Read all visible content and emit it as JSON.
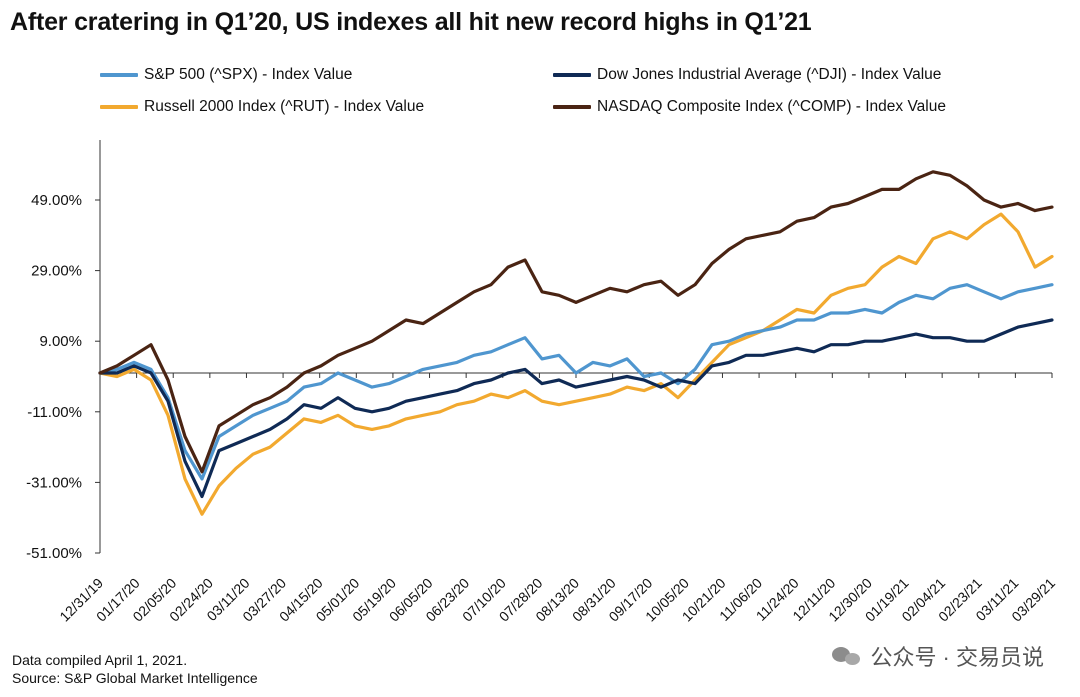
{
  "title": "After cratering in Q1’20, US indexes all hit new record highs in Q1’21",
  "legend": [
    {
      "label": "S&P 500 (^SPX) - Index Value",
      "color": "#4f96cf"
    },
    {
      "label": "Dow Jones Industrial Average (^DJI) - Index Value",
      "color": "#0f2a55"
    },
    {
      "label": "Russell 2000 Index (^RUT) - Index Value",
      "color": "#f2a92f"
    },
    {
      "label": "NASDAQ Composite Index (^COMP) - Index Value",
      "color": "#4a2413"
    }
  ],
  "footnotes": {
    "compiled": "Data compiled April 1, 2021.",
    "source": "Source: S&P Global Market Intelligence"
  },
  "watermark": {
    "text": "公众号 · 交易员说",
    "icon": "wechat-icon"
  },
  "chart_data": {
    "type": "line",
    "ylim": [
      -51,
      60
    ],
    "yticks": [
      49,
      29,
      9,
      -11,
      -31,
      -51
    ],
    "ytick_labels": [
      "49.00%",
      "29.00%",
      "9.00%",
      "-11.00%",
      "-31.00%",
      "-51.00%"
    ],
    "grid": false,
    "legend_position": "top",
    "x_tick_labels": [
      "12/31/19",
      "01/17/20",
      "02/05/20",
      "02/24/20",
      "03/11/20",
      "03/27/20",
      "04/15/20",
      "05/01/20",
      "05/19/20",
      "06/05/20",
      "06/23/20",
      "07/10/20",
      "07/28/20",
      "08/13/20",
      "08/31/20",
      "09/17/20",
      "10/05/20",
      "10/21/20",
      "11/06/20",
      "11/24/20",
      "12/11/20",
      "12/30/20",
      "01/19/21",
      "02/04/21",
      "02/23/21",
      "03/11/21",
      "03/29/21"
    ],
    "series": [
      {
        "name": "S&P 500 (^SPX) - Index Value",
        "color": "#4f96cf",
        "values": [
          0,
          1,
          3,
          1,
          -7,
          -22,
          -30,
          -18,
          -15,
          -12,
          -10,
          -8,
          -4,
          -3,
          0,
          -2,
          -4,
          -3,
          -1,
          1,
          2,
          3,
          5,
          6,
          8,
          10,
          4,
          5,
          0,
          3,
          2,
          4,
          -1,
          0,
          -3,
          1,
          8,
          9,
          11,
          12,
          13,
          15,
          15,
          17,
          17,
          18,
          17,
          20,
          22,
          21,
          24,
          25,
          23,
          21,
          23,
          24,
          25
        ]
      },
      {
        "name": "Dow Jones Industrial Average (^DJI) - Index Value",
        "color": "#0f2a55",
        "values": [
          0,
          0,
          2,
          0,
          -8,
          -25,
          -35,
          -22,
          -20,
          -18,
          -16,
          -13,
          -9,
          -10,
          -7,
          -10,
          -11,
          -10,
          -8,
          -7,
          -6,
          -5,
          -3,
          -2,
          0,
          1,
          -3,
          -2,
          -4,
          -3,
          -2,
          -1,
          -2,
          -4,
          -2,
          -3,
          2,
          3,
          5,
          5,
          6,
          7,
          6,
          8,
          8,
          9,
          9,
          10,
          11,
          10,
          10,
          9,
          9,
          11,
          13,
          14,
          15
        ]
      },
      {
        "name": "Russell 2000 Index (^RUT) - Index Value",
        "color": "#f2a92f",
        "values": [
          0,
          -1,
          1,
          -2,
          -12,
          -30,
          -40,
          -32,
          -27,
          -23,
          -21,
          -17,
          -13,
          -14,
          -12,
          -15,
          -16,
          -15,
          -13,
          -12,
          -11,
          -9,
          -8,
          -6,
          -7,
          -5,
          -8,
          -9,
          -8,
          -7,
          -6,
          -4,
          -5,
          -3,
          -7,
          -2,
          3,
          8,
          10,
          12,
          15,
          18,
          17,
          22,
          24,
          25,
          30,
          33,
          31,
          38,
          40,
          38,
          42,
          45,
          40,
          30,
          33
        ]
      },
      {
        "name": "NASDAQ Composite Index (^COMP) - Index Value",
        "color": "#4a2413",
        "values": [
          0,
          2,
          5,
          8,
          -2,
          -18,
          -28,
          -15,
          -12,
          -9,
          -7,
          -4,
          0,
          2,
          5,
          7,
          9,
          12,
          15,
          14,
          17,
          20,
          23,
          25,
          30,
          32,
          23,
          22,
          20,
          22,
          24,
          23,
          25,
          26,
          22,
          25,
          31,
          35,
          38,
          39,
          40,
          43,
          44,
          47,
          48,
          50,
          52,
          52,
          55,
          57,
          56,
          53,
          49,
          47,
          48,
          46,
          47
        ]
      }
    ]
  }
}
